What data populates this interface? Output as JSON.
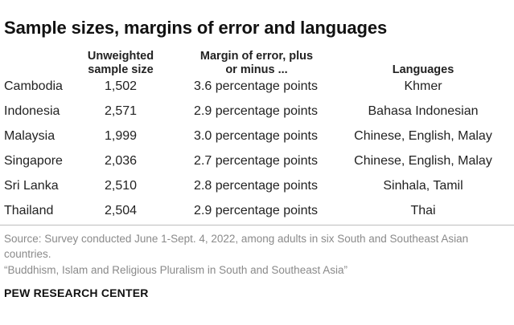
{
  "title": "Sample sizes, margins of error and languages",
  "headers": {
    "sample_size": "Unweighted sample size",
    "margin_of_error": "Margin of error, plus or minus ...",
    "languages": "Languages"
  },
  "rows": [
    {
      "country": "Cambodia",
      "sample_size": "1,502",
      "margin_of_error": "3.6 percentage points",
      "languages": "Khmer"
    },
    {
      "country": "Indonesia",
      "sample_size": "2,571",
      "margin_of_error": "2.9 percentage points",
      "languages": "Bahasa Indonesian"
    },
    {
      "country": "Malaysia",
      "sample_size": "1,999",
      "margin_of_error": "3.0 percentage points",
      "languages": "Chinese, English, Malay"
    },
    {
      "country": "Singapore",
      "sample_size": "2,036",
      "margin_of_error": "2.7 percentage points",
      "languages": "Chinese, English, Malay"
    },
    {
      "country": "Sri Lanka",
      "sample_size": "2,510",
      "margin_of_error": "2.8 percentage points",
      "languages": "Sinhala, Tamil"
    },
    {
      "country": "Thailand",
      "sample_size": "2,504",
      "margin_of_error": "2.9 percentage points",
      "languages": "Thai"
    }
  ],
  "source": "Source: Survey conducted June 1-Sept. 4, 2022, among adults in six South and Southeast Asian countries.",
  "report_title": "“Buddhism, Islam and Religious Pluralism in South and Southeast Asia”",
  "brand": "PEW RESEARCH CENTER"
}
